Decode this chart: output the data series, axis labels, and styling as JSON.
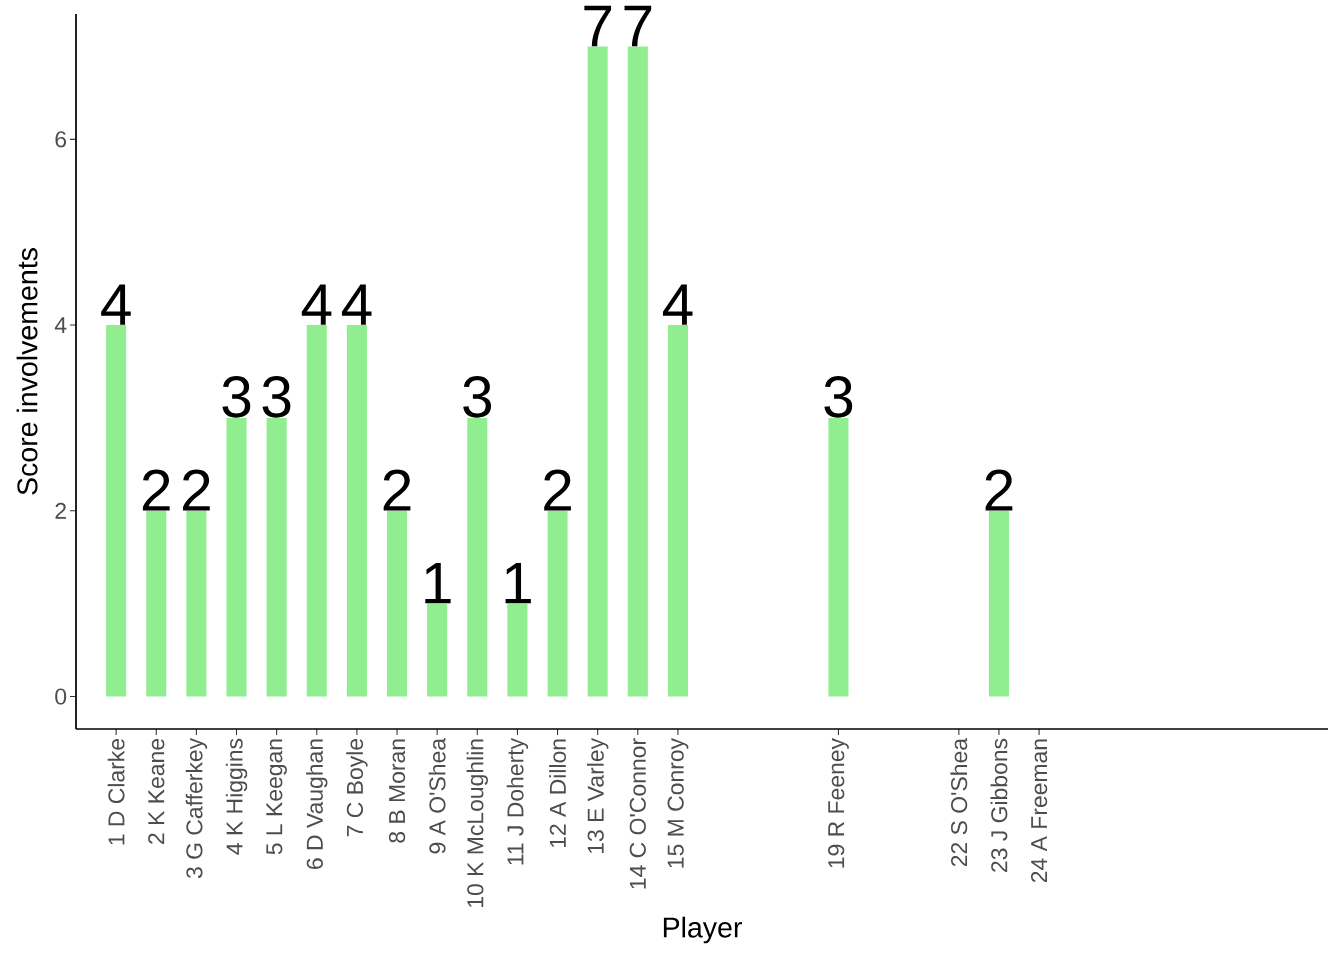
{
  "chart_data": {
    "type": "bar",
    "xlabel": "Player",
    "ylabel": "Score involvements",
    "x": [
      1,
      2,
      3,
      4,
      5,
      6,
      7,
      8,
      9,
      10,
      11,
      12,
      13,
      14,
      15,
      19,
      23
    ],
    "values": [
      4,
      2,
      2,
      3,
      3,
      4,
      4,
      2,
      1,
      3,
      1,
      2,
      7,
      7,
      4,
      3,
      2
    ],
    "color": "#90ee90",
    "xlim": [
      0,
      31.2
    ],
    "xticks": [
      {
        "value": 1,
        "label": "1 D Clarke"
      },
      {
        "value": 2,
        "label": "2 K Keane"
      },
      {
        "value": 3,
        "label": "3 G Cafferkey"
      },
      {
        "value": 4,
        "label": "4 K Higgins"
      },
      {
        "value": 5,
        "label": "5 L Keegan"
      },
      {
        "value": 6,
        "label": "6 D Vaughan"
      },
      {
        "value": 7,
        "label": "7 C Boyle"
      },
      {
        "value": 8,
        "label": "8 B Moran"
      },
      {
        "value": 9,
        "label": "9 A O'Shea"
      },
      {
        "value": 10,
        "label": "10 K McLoughlin"
      },
      {
        "value": 11,
        "label": "11 J Doherty"
      },
      {
        "value": 12,
        "label": "12 A Dillon"
      },
      {
        "value": 13,
        "label": "13 E Varley"
      },
      {
        "value": 14,
        "label": "14 C O'Connor"
      },
      {
        "value": 15,
        "label": "15 M Conroy"
      },
      {
        "value": 19,
        "label": "19 R Feeney"
      },
      {
        "value": 22,
        "label": "22 S O'Shea"
      },
      {
        "value": 23,
        "label": "23 J Gibbons"
      },
      {
        "value": 24,
        "label": "24 A Freeman"
      }
    ],
    "ylim": [
      -0.35,
      7.35
    ],
    "yticks": [
      0,
      2,
      4,
      6
    ],
    "data_labels": true
  }
}
